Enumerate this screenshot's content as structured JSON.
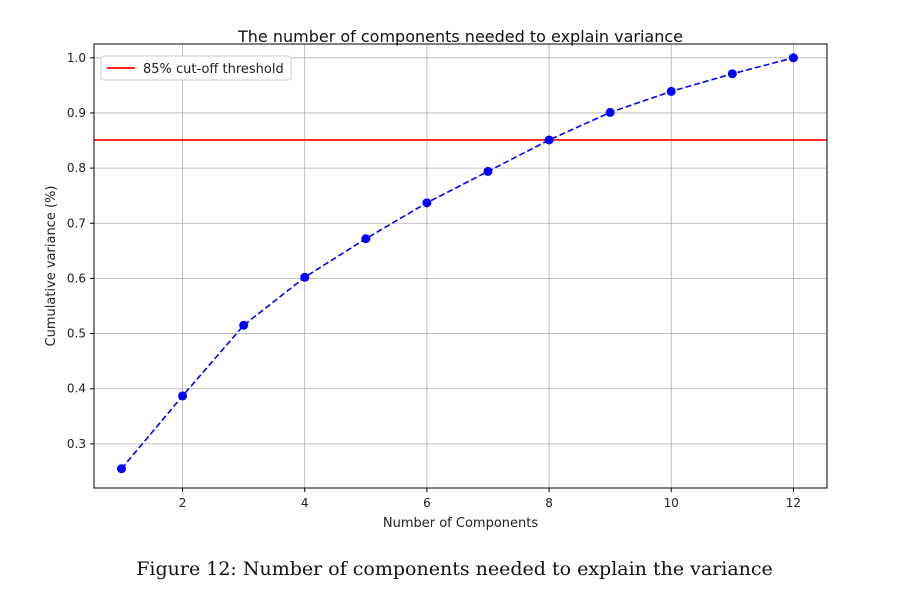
{
  "chart_data": {
    "type": "line",
    "title": "The number of components needed to explain variance",
    "xlabel": "Number of Components",
    "ylabel": "Cumulative variance (%)",
    "xlim": [
      0.55,
      12.55
    ],
    "ylim": [
      0.22,
      1.025
    ],
    "xticks": [
      2,
      4,
      6,
      8,
      10,
      12
    ],
    "yticks": [
      0.3,
      0.4,
      0.5,
      0.6,
      0.7,
      0.8,
      0.9,
      1.0
    ],
    "ytick_labels": [
      "0.3",
      "0.4",
      "0.5",
      "0.6",
      "0.7",
      "0.8",
      "0.9",
      "1.0"
    ],
    "grid": true,
    "legend_position": "top-left",
    "series": [
      {
        "style": "dashed-with-markers",
        "color": "#0000ff",
        "x": [
          1,
          2,
          3,
          4,
          5,
          6,
          7,
          8,
          9,
          10,
          11,
          12
        ],
        "values": [
          0.255,
          0.387,
          0.515,
          0.602,
          0.672,
          0.737,
          0.794,
          0.851,
          0.901,
          0.939,
          0.971,
          1.0
        ]
      }
    ],
    "threshold": {
      "label": "85% cut-off threshold",
      "value": 0.851,
      "color": "#ff0000"
    }
  },
  "caption": "Figure 12: Number of components needed to explain the variance"
}
